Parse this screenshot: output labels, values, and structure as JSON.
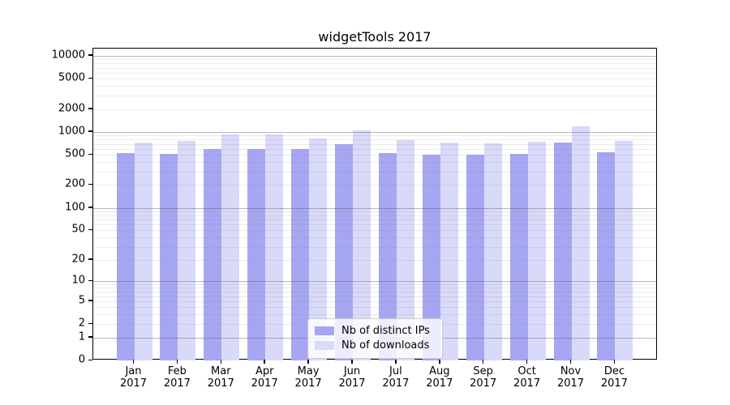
{
  "chart_data": {
    "type": "bar",
    "title": "widgetTools 2017",
    "y_scale": "log(1+x)",
    "categories": [
      "Jan",
      "Feb",
      "Mar",
      "Apr",
      "May",
      "Jun",
      "Jul",
      "Aug",
      "Sep",
      "Oct",
      "Nov",
      "Dec"
    ],
    "category_year": "2017",
    "series": [
      {
        "name": "Nb of distinct IPs",
        "color": "#a6a6f2",
        "values": [
          530,
          515,
          600,
          600,
          600,
          690,
          525,
          500,
          500,
          515,
          720,
          540
        ]
      },
      {
        "name": "Nb of downloads",
        "color": "#d9d9f9",
        "values": [
          720,
          755,
          925,
          918,
          815,
          1040,
          790,
          735,
          715,
          740,
          1180,
          762
        ]
      }
    ],
    "y_ticks": [
      0,
      1,
      2,
      5,
      10,
      20,
      50,
      100,
      200,
      500,
      1000,
      2000,
      5000,
      10000
    ],
    "ylim": [
      0,
      13000
    ],
    "grid": "horizontal major+minor, drawn over bars",
    "legend_position": "lower center",
    "colors": {
      "axis": "#000000",
      "major_grid": "#b3b3b3",
      "minor_grid": "#e7e7e7",
      "background": "#ffffff"
    }
  }
}
